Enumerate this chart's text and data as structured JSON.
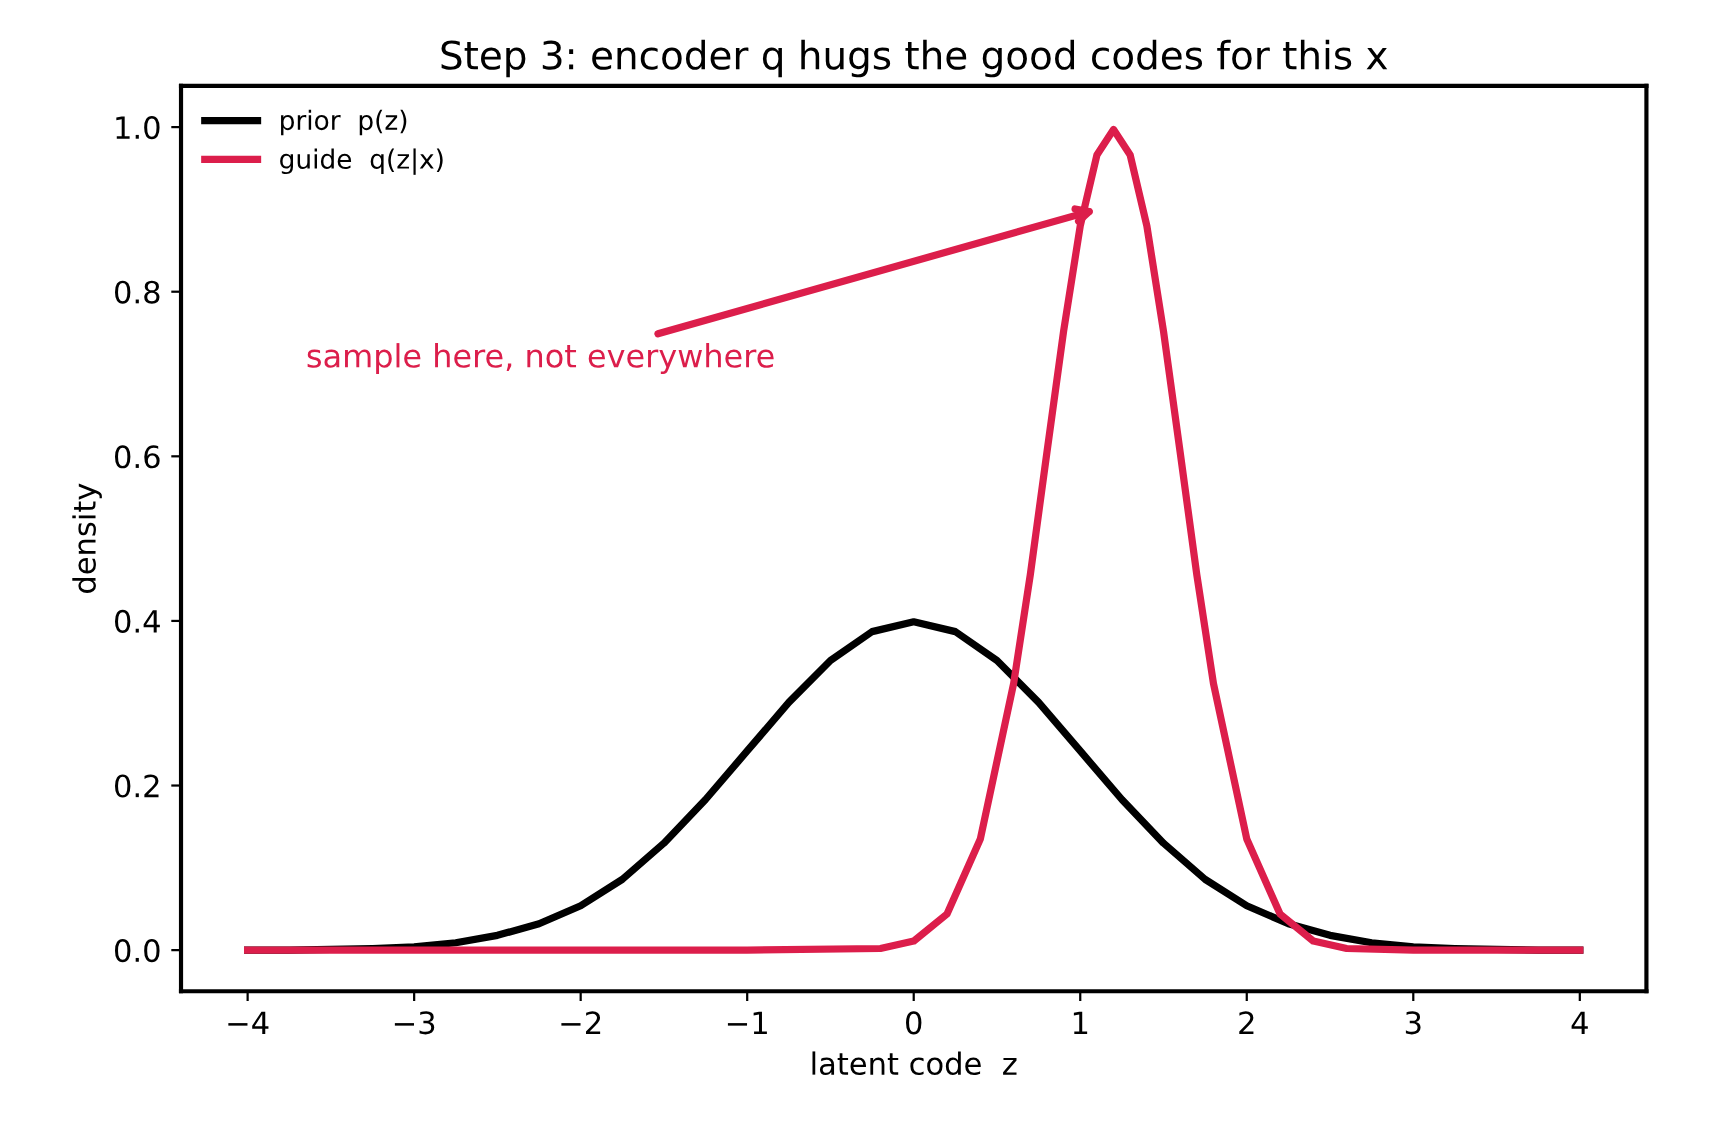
{
  "chart_data": {
    "type": "line",
    "title": "Step 3: encoder q hugs the good codes for this x",
    "xlabel": "latent code  z",
    "ylabel": "density",
    "series": [
      {
        "name": "prior  p(z)",
        "color": "#000000",
        "x": [
          -4,
          -3.75,
          -3.5,
          -3.25,
          -3,
          -2.75,
          -2.5,
          -2.25,
          -2,
          -1.75,
          -1.5,
          -1.25,
          -1,
          -0.75,
          -0.5,
          -0.25,
          0,
          0.25,
          0.5,
          0.75,
          1,
          1.25,
          1.5,
          1.75,
          2,
          2.25,
          2.5,
          2.75,
          3,
          3.25,
          3.5,
          3.75,
          4
        ],
        "values": [
          0.0,
          0.0,
          0.001,
          0.002,
          0.004,
          0.009,
          0.018,
          0.032,
          0.054,
          0.086,
          0.13,
          0.183,
          0.242,
          0.301,
          0.352,
          0.387,
          0.399,
          0.387,
          0.352,
          0.301,
          0.242,
          0.183,
          0.13,
          0.086,
          0.054,
          0.032,
          0.018,
          0.009,
          0.004,
          0.002,
          0.001,
          0.0,
          0.0
        ]
      },
      {
        "name": "guide  q(z|x)",
        "color": "#dc1e4b",
        "x": [
          -4,
          -1,
          -0.2,
          0,
          0.2,
          0.4,
          0.6,
          0.7,
          0.8,
          0.9,
          1.0,
          1.1,
          1.2,
          1.3,
          1.4,
          1.5,
          1.6,
          1.7,
          1.8,
          2.0,
          2.2,
          2.4,
          2.6,
          3,
          4
        ],
        "values": [
          0.0,
          0.0,
          0.002,
          0.011,
          0.044,
          0.135,
          0.324,
          0.456,
          0.605,
          0.752,
          0.88,
          0.966,
          0.997,
          0.966,
          0.88,
          0.752,
          0.605,
          0.456,
          0.324,
          0.135,
          0.044,
          0.011,
          0.002,
          0.0,
          0.0
        ]
      }
    ],
    "annotations": [
      {
        "text": "sample here, not everywhere",
        "x": 1.1,
        "y": 0.9
      }
    ],
    "xlim": [
      -4.4,
      4.4
    ],
    "ylim": [
      -0.05,
      1.05
    ],
    "xticks": [
      {
        "value": -4,
        "label": "−4"
      },
      {
        "value": -3,
        "label": "−3"
      },
      {
        "value": -2,
        "label": "−2"
      },
      {
        "value": -1,
        "label": "−1"
      },
      0,
      1,
      2,
      3,
      4
    ],
    "yticks": [
      {
        "value": 0,
        "label": "0.0"
      },
      {
        "value": 0.2,
        "label": "0.2"
      },
      {
        "value": 0.4,
        "label": "0.4"
      },
      {
        "value": 0.6,
        "label": "0.6"
      },
      {
        "value": 0.8,
        "label": "0.8"
      },
      {
        "value": 1,
        "label": "1.0"
      }
    ],
    "grid": false,
    "legend": "top left",
    "line_style": "solid",
    "marker": "none"
  }
}
